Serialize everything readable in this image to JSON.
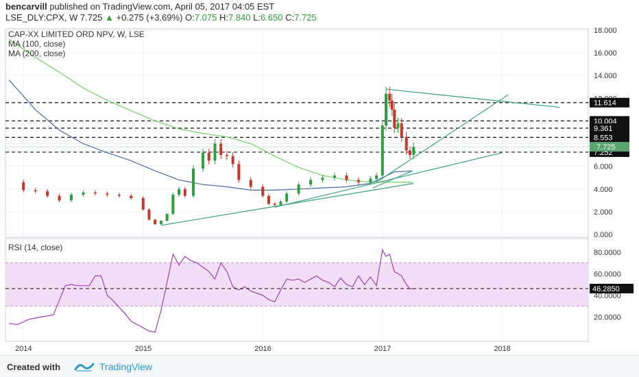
{
  "header": {
    "author": "bencarvill",
    "published_text": "published on TradingView.com, April 05, 2017 04:05 EST",
    "symbol": "LSE_DLY:CPX, W",
    "last": "7.725",
    "change_arrow": "▲",
    "change": "+0.275 (+3.69%)",
    "o_label": "O:",
    "o_value": "7.075",
    "h_label": "H:",
    "h_value": "7.840",
    "l_label": "L:",
    "l_value": "6.650",
    "c_label": "C:",
    "c_value": "7.725"
  },
  "legend": {
    "main_title": "CAP-XX LIMITED ORD NPV, W, LSE",
    "ma100": "MA (100, close)",
    "ma200": "MA (200, close)",
    "rsi": "RSI (14, close)"
  },
  "footer": {
    "created_with": "Created with",
    "brand": "TradingView"
  },
  "colors": {
    "up": "#2e9e3f",
    "down": "#c0392b",
    "ma100": "#4a6ca8",
    "ma200": "#7ed46c",
    "trend": "#3aa37a",
    "rsi": "#9c3fb5",
    "rsi_band": "#f2dff7"
  },
  "chart_data": [
    {
      "type": "candlestick",
      "title": "CAP-XX LIMITED ORD NPV, W, LSE",
      "ylim": [
        0,
        18
      ],
      "y_ticks": [
        "0.000",
        "2.000",
        "4.000",
        "6.000",
        "8.000",
        "10.000",
        "12.000",
        "14.000",
        "16.000",
        "18.000"
      ],
      "x_ticks": [
        "2014",
        "2015",
        "2016",
        "2017",
        "2018"
      ],
      "x_tick_years": [
        2014,
        2015,
        2016,
        2017,
        2018
      ],
      "xlim": [
        2013.85,
        2018.72
      ],
      "grid": true,
      "price_series": {
        "x": [
          2013.88,
          2014.0,
          2014.1,
          2014.2,
          2014.3,
          2014.4,
          2014.5,
          2014.6,
          2014.7,
          2014.8,
          2014.9,
          2015.0,
          2015.05,
          2015.1,
          2015.15,
          2015.2,
          2015.25,
          2015.3,
          2015.35,
          2015.42,
          2015.5,
          2015.55,
          2015.6,
          2015.65,
          2015.7,
          2015.75,
          2015.8,
          2015.9,
          2016.0,
          2016.05,
          2016.1,
          2016.15,
          2016.2,
          2016.3,
          2016.4,
          2016.5,
          2016.6,
          2016.7,
          2016.8,
          2016.9,
          2016.95,
          2017.0,
          2017.03,
          2017.06,
          2017.08,
          2017.1,
          2017.13,
          2017.16,
          2017.2,
          2017.23,
          2017.26
        ],
        "close": [
          4.6,
          3.9,
          3.8,
          3.4,
          3.0,
          3.5,
          3.7,
          3.6,
          3.5,
          3.4,
          3.2,
          2.2,
          1.3,
          0.9,
          1.2,
          1.8,
          3.5,
          4.0,
          3.4,
          5.8,
          7.2,
          6.5,
          8.0,
          7.0,
          6.9,
          6.2,
          4.8,
          4.2,
          3.4,
          2.7,
          2.6,
          2.9,
          3.6,
          4.4,
          4.8,
          5.0,
          5.2,
          4.8,
          4.6,
          4.9,
          5.2,
          9.6,
          12.4,
          11.8,
          11.0,
          9.4,
          9.8,
          8.6,
          7.4,
          7.0,
          7.725
        ]
      },
      "ma100": {
        "x": [
          2013.88,
          2014.1,
          2014.3,
          2014.5,
          2014.7,
          2014.9,
          2015.1,
          2015.3,
          2015.5,
          2015.7,
          2015.9,
          2016.1,
          2016.3,
          2016.5,
          2016.7,
          2016.9,
          2017.0,
          2017.1,
          2017.25
        ],
        "values": [
          13.6,
          11.0,
          9.2,
          8.0,
          7.2,
          6.5,
          5.6,
          4.8,
          4.4,
          4.2,
          3.9,
          3.9,
          4.0,
          4.1,
          4.2,
          4.5,
          5.0,
          5.5,
          5.6
        ]
      },
      "ma200": {
        "x": [
          2013.88,
          2014.1,
          2014.3,
          2014.5,
          2014.7,
          2014.9,
          2015.1,
          2015.3,
          2015.5,
          2015.7,
          2015.9,
          2016.1,
          2016.3,
          2016.5,
          2016.7,
          2016.9,
          2017.0,
          2017.1,
          2017.25
        ],
        "values": [
          17.2,
          15.6,
          14.3,
          12.9,
          11.8,
          10.9,
          10.0,
          9.3,
          8.9,
          8.6,
          8.0,
          6.9,
          5.9,
          5.2,
          4.8,
          4.6,
          4.6,
          4.6,
          4.6
        ]
      },
      "horizontal_levels": [
        {
          "value": 11.614,
          "label": "11.614"
        },
        {
          "value": 10.004,
          "label": "10.004"
        },
        {
          "value": 9.361,
          "label": "9.361"
        },
        {
          "value": 8.553,
          "label": "8.553"
        },
        {
          "value": 7.252,
          "label": "7.252"
        }
      ],
      "last_price": {
        "value": 7.725,
        "label": "7.725"
      },
      "trendlines": [
        {
          "x": [
            2015.15,
            2017.26
          ],
          "y": [
            0.8,
            4.5
          ]
        },
        {
          "x": [
            2016.1,
            2018.0
          ],
          "y": [
            2.4,
            7.2
          ]
        },
        {
          "x": [
            2017.03,
            2018.48
          ],
          "y": [
            12.8,
            11.2
          ]
        },
        {
          "x": [
            2016.95,
            2018.05
          ],
          "y": [
            4.6,
            12.3
          ]
        },
        {
          "x": [
            2016.92,
            2017.25
          ],
          "y": [
            4.1,
            5.6
          ]
        }
      ]
    },
    {
      "type": "line",
      "title": "RSI (14, close)",
      "ylim": [
        0,
        90
      ],
      "y_ticks": [
        "20.0000",
        "40.0000",
        "60.0000",
        "80.0000"
      ],
      "band": [
        30,
        70
      ],
      "last_value": {
        "value": 46.285,
        "label": "46.2850"
      },
      "series": {
        "x": [
          2013.88,
          2013.95,
          2014.05,
          2014.15,
          2014.25,
          2014.35,
          2014.4,
          2014.45,
          2014.55,
          2014.6,
          2014.65,
          2014.7,
          2014.75,
          2014.8,
          2014.85,
          2014.9,
          2015.0,
          2015.05,
          2015.1,
          2015.15,
          2015.2,
          2015.25,
          2015.3,
          2015.35,
          2015.4,
          2015.45,
          2015.5,
          2015.55,
          2015.6,
          2015.65,
          2015.7,
          2015.75,
          2015.8,
          2015.85,
          2015.9,
          2016.0,
          2016.05,
          2016.1,
          2016.15,
          2016.2,
          2016.25,
          2016.3,
          2016.35,
          2016.4,
          2016.45,
          2016.5,
          2016.55,
          2016.6,
          2016.65,
          2016.7,
          2016.75,
          2016.8,
          2016.85,
          2016.9,
          2016.95,
          2017.0,
          2017.03,
          2017.06,
          2017.1,
          2017.13,
          2017.16,
          2017.2,
          2017.23,
          2017.26
        ],
        "values": [
          14,
          13,
          18,
          20,
          22,
          49,
          50,
          49,
          49,
          58,
          58,
          40,
          35,
          29,
          23,
          16,
          10,
          7,
          6,
          26,
          52,
          78,
          68,
          76,
          72,
          70,
          66,
          62,
          55,
          70,
          62,
          48,
          45,
          48,
          44,
          40,
          36,
          34,
          45,
          55,
          54,
          55,
          52,
          55,
          58,
          54,
          52,
          48,
          56,
          50,
          48,
          58,
          50,
          57,
          49,
          82,
          76,
          78,
          62,
          60,
          58,
          50,
          46,
          46.285
        ]
      }
    }
  ]
}
